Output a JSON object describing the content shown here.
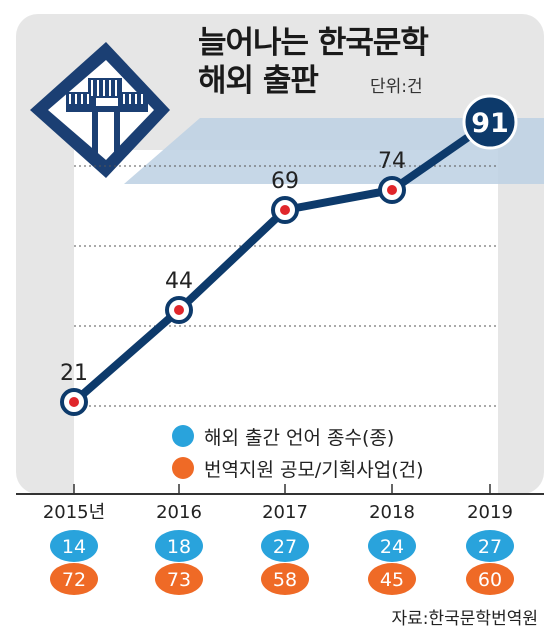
{
  "title_line1": "늘어나는 한국문학",
  "title_line2": "해외 출판",
  "unit": "단위:건",
  "source": "자료:한국문학번역원",
  "colors": {
    "line": "#0d3a6b",
    "marker_dot": "#e0262b",
    "languages": "#29a3dc",
    "applications": "#ef6a26",
    "band": "#bcd0e3",
    "background": "#e6e6e6"
  },
  "legend": {
    "languages_label": "해외 출간 언어 종수(종)",
    "applications_label": "번역지원 공모/기획사업(건)"
  },
  "chart_data": {
    "type": "line",
    "x": [
      "2015년",
      "2016",
      "2017",
      "2018",
      "2019"
    ],
    "ylim": [
      0,
      100
    ],
    "series": [
      {
        "values": [
          21,
          44,
          69,
          74,
          91
        ]
      }
    ],
    "tables": [
      {
        "legend": "해외 출간 언어 종수(종)",
        "values": [
          14,
          18,
          27,
          24,
          27
        ]
      },
      {
        "legend": "번역지원 공모/기획사업(건)",
        "values": [
          72,
          73,
          58,
          45,
          60
        ]
      }
    ]
  }
}
